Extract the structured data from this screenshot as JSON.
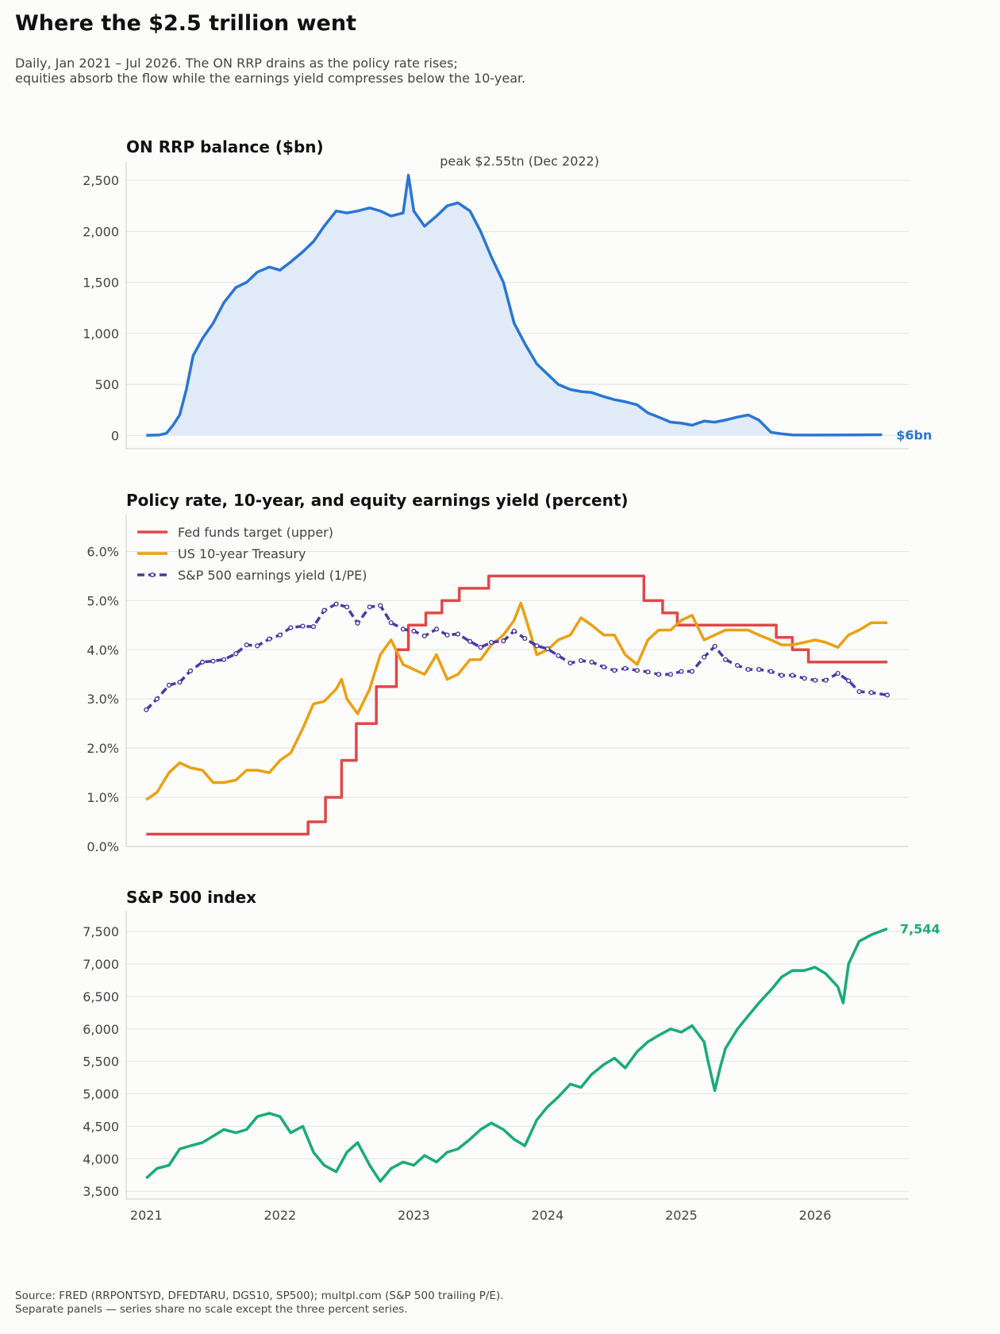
{
  "title": "Where the $2.5 trillion went",
  "subtitle": [
    "Daily, Jan 2021 – Jul 2026. The ON RRP drains as the policy rate rises;",
    "equities absorb the flow while the earnings yield compresses below the 10-year."
  ],
  "footer": [
    "Source: FRED (RRPONTSYD, DFEDTARU, DGS10, SP500); multpl.com (S&P 500 trailing P/E).",
    "Separate panels — series share no scale except the three percent series."
  ],
  "colors": {
    "rrp": "#2a76d2",
    "rrp_fill": "#e1eaf7",
    "fedfunds": "#e04848",
    "treasury": "#eba012",
    "earnings_yield": "#4a3aa4",
    "spx": "#1aab78",
    "grid": "#e3e3e3",
    "axis": "#cccccc"
  },
  "chart_data": [
    {
      "type": "area",
      "title": "ON RRP balance  ($bn)",
      "annotation": "peak $2.55tn (Dec 2022)",
      "end_label": "$6bn",
      "xlim": [
        2020.85,
        2026.7
      ],
      "ylim": [
        -130,
        2680
      ],
      "yticks": [
        0,
        500,
        1000,
        1500,
        2000,
        2500
      ],
      "ytick_labels": [
        "0",
        "500",
        "1,000",
        "1,500",
        "2,000",
        "2,500"
      ],
      "grid": true,
      "series": [
        {
          "x": [
            2021.0,
            2021.1,
            2021.15,
            2021.2,
            2021.25,
            2021.3,
            2021.35,
            2021.42,
            2021.5,
            2021.58,
            2021.67,
            2021.75,
            2021.83,
            2021.92,
            2022.0,
            2022.08,
            2022.17,
            2022.25,
            2022.33,
            2022.42,
            2022.5,
            2022.58,
            2022.67,
            2022.75,
            2022.83,
            2022.92,
            2022.96,
            2023.0,
            2023.08,
            2023.17,
            2023.25,
            2023.33,
            2023.42,
            2023.5,
            2023.58,
            2023.67,
            2023.75,
            2023.83,
            2023.92,
            2024.0,
            2024.08,
            2024.17,
            2024.25,
            2024.33,
            2024.42,
            2024.5,
            2024.58,
            2024.67,
            2024.75,
            2024.83,
            2024.92,
            2025.0,
            2025.08,
            2025.17,
            2025.25,
            2025.33,
            2025.42,
            2025.5,
            2025.58,
            2025.67,
            2025.75,
            2025.83,
            2026.0,
            2026.25,
            2026.5
          ],
          "y": [
            0,
            5,
            20,
            100,
            200,
            450,
            780,
            950,
            1100,
            1300,
            1450,
            1500,
            1600,
            1650,
            1620,
            1700,
            1800,
            1900,
            2050,
            2200,
            2180,
            2200,
            2230,
            2200,
            2150,
            2180,
            2550,
            2200,
            2050,
            2150,
            2250,
            2280,
            2200,
            2000,
            1750,
            1500,
            1100,
            900,
            700,
            600,
            500,
            450,
            430,
            420,
            380,
            350,
            330,
            300,
            220,
            180,
            130,
            120,
            100,
            140,
            130,
            150,
            180,
            200,
            150,
            30,
            15,
            5,
            3,
            5,
            6
          ]
        }
      ]
    },
    {
      "type": "line",
      "title": "Policy rate, 10-year, and equity earnings yield  (percent)",
      "xlim": [
        2020.85,
        2026.7
      ],
      "ylim": [
        0.0,
        6.75
      ],
      "yticks": [
        0,
        1,
        2,
        3,
        4,
        5,
        6
      ],
      "ytick_labels": [
        "0.0%",
        "1.0%",
        "2.0%",
        "3.0%",
        "4.0%",
        "5.0%",
        "6.0%"
      ],
      "legend_position": "top-left",
      "grid": true,
      "series": [
        {
          "name": "Fed funds target (upper)",
          "step": true,
          "x": [
            2021.0,
            2022.21,
            2022.34,
            2022.46,
            2022.57,
            2022.72,
            2022.87,
            2022.96,
            2023.09,
            2023.21,
            2023.34,
            2023.56,
            2024.72,
            2024.86,
            2024.97,
            2025.71,
            2025.83,
            2025.95,
            2026.54
          ],
          "y": [
            0.25,
            0.5,
            1.0,
            1.75,
            2.5,
            3.25,
            4.0,
            4.5,
            4.75,
            5.0,
            5.25,
            5.5,
            5.0,
            4.75,
            4.5,
            4.25,
            4.0,
            3.75,
            3.75
          ]
        },
        {
          "name": "US 10-year Treasury",
          "x": [
            2021.0,
            2021.08,
            2021.17,
            2021.25,
            2021.33,
            2021.42,
            2021.5,
            2021.58,
            2021.67,
            2021.75,
            2021.83,
            2021.92,
            2022.0,
            2022.08,
            2022.17,
            2022.25,
            2022.33,
            2022.42,
            2022.46,
            2022.5,
            2022.58,
            2022.67,
            2022.75,
            2022.83,
            2022.92,
            2023.0,
            2023.08,
            2023.17,
            2023.25,
            2023.33,
            2023.42,
            2023.5,
            2023.58,
            2023.67,
            2023.75,
            2023.8,
            2023.83,
            2023.92,
            2024.0,
            2024.08,
            2024.17,
            2024.25,
            2024.33,
            2024.42,
            2024.5,
            2024.58,
            2024.67,
            2024.75,
            2024.83,
            2024.92,
            2025.0,
            2025.08,
            2025.17,
            2025.25,
            2025.33,
            2025.42,
            2025.5,
            2025.58,
            2025.67,
            2025.75,
            2025.83,
            2025.92,
            2026.0,
            2026.08,
            2026.17,
            2026.25,
            2026.33,
            2026.42,
            2026.54
          ],
          "y": [
            0.95,
            1.1,
            1.5,
            1.7,
            1.6,
            1.55,
            1.3,
            1.3,
            1.35,
            1.55,
            1.55,
            1.5,
            1.75,
            1.9,
            2.4,
            2.9,
            2.95,
            3.2,
            3.4,
            3.0,
            2.7,
            3.2,
            3.9,
            4.2,
            3.7,
            3.6,
            3.5,
            3.9,
            3.4,
            3.5,
            3.8,
            3.8,
            4.1,
            4.3,
            4.6,
            4.95,
            4.7,
            3.9,
            4.0,
            4.2,
            4.3,
            4.65,
            4.5,
            4.3,
            4.3,
            3.9,
            3.7,
            4.2,
            4.4,
            4.4,
            4.6,
            4.7,
            4.2,
            4.3,
            4.4,
            4.4,
            4.4,
            4.3,
            4.2,
            4.1,
            4.1,
            4.15,
            4.2,
            4.15,
            4.05,
            4.3,
            4.4,
            4.55,
            4.55
          ]
        },
        {
          "name": "S&P 500 earnings yield (1/PE)",
          "markers": true,
          "x": [
            2021.0,
            2021.08,
            2021.17,
            2021.25,
            2021.33,
            2021.42,
            2021.5,
            2021.58,
            2021.67,
            2021.75,
            2021.83,
            2021.92,
            2022.0,
            2022.08,
            2022.17,
            2022.25,
            2022.33,
            2022.42,
            2022.5,
            2022.58,
            2022.67,
            2022.75,
            2022.83,
            2022.92,
            2023.0,
            2023.08,
            2023.17,
            2023.25,
            2023.33,
            2023.42,
            2023.5,
            2023.58,
            2023.67,
            2023.75,
            2023.83,
            2023.92,
            2024.0,
            2024.08,
            2024.17,
            2024.25,
            2024.33,
            2024.42,
            2024.5,
            2024.58,
            2024.67,
            2024.75,
            2024.83,
            2024.92,
            2025.0,
            2025.08,
            2025.17,
            2025.25,
            2025.33,
            2025.42,
            2025.5,
            2025.58,
            2025.67,
            2025.75,
            2025.83,
            2025.92,
            2026.0,
            2026.08,
            2026.17,
            2026.25,
            2026.33,
            2026.42,
            2026.54
          ],
          "y": [
            2.78,
            3.0,
            3.28,
            3.34,
            3.57,
            3.75,
            3.77,
            3.8,
            3.92,
            4.1,
            4.08,
            4.22,
            4.3,
            4.45,
            4.48,
            4.47,
            4.8,
            4.93,
            4.87,
            4.54,
            4.87,
            4.9,
            4.55,
            4.42,
            4.38,
            4.28,
            4.42,
            4.3,
            4.32,
            4.17,
            4.05,
            4.15,
            4.18,
            4.38,
            4.23,
            4.08,
            4.02,
            3.88,
            3.73,
            3.78,
            3.75,
            3.65,
            3.58,
            3.62,
            3.58,
            3.55,
            3.5,
            3.5,
            3.56,
            3.56,
            3.85,
            4.07,
            3.8,
            3.68,
            3.6,
            3.6,
            3.56,
            3.48,
            3.48,
            3.42,
            3.38,
            3.38,
            3.52,
            3.37,
            3.15,
            3.13,
            3.08
          ]
        }
      ]
    },
    {
      "type": "line",
      "title": "S&P 500 index",
      "end_label": "7,544",
      "xlim": [
        2020.85,
        2026.7
      ],
      "ylim": [
        3380,
        7820
      ],
      "yticks": [
        3500,
        4000,
        4500,
        5000,
        5500,
        6000,
        6500,
        7000,
        7500
      ],
      "ytick_labels": [
        "3,500",
        "4,000",
        "4,500",
        "5,000",
        "5,500",
        "6,000",
        "6,500",
        "7,000",
        "7,500"
      ],
      "xticks": [
        2021,
        2022,
        2023,
        2024,
        2025,
        2026
      ],
      "xtick_labels": [
        "2021",
        "2022",
        "2023",
        "2024",
        "2025",
        "2026"
      ],
      "grid": true,
      "series": [
        {
          "x": [
            2021.0,
            2021.08,
            2021.17,
            2021.25,
            2021.33,
            2021.42,
            2021.5,
            2021.58,
            2021.67,
            2021.75,
            2021.83,
            2021.92,
            2022.0,
            2022.08,
            2022.17,
            2022.25,
            2022.33,
            2022.42,
            2022.5,
            2022.58,
            2022.67,
            2022.75,
            2022.83,
            2022.92,
            2023.0,
            2023.08,
            2023.17,
            2023.25,
            2023.33,
            2023.42,
            2023.5,
            2023.58,
            2023.67,
            2023.75,
            2023.83,
            2023.92,
            2024.0,
            2024.08,
            2024.17,
            2024.25,
            2024.33,
            2024.42,
            2024.5,
            2024.58,
            2024.67,
            2024.75,
            2024.83,
            2024.92,
            2025.0,
            2025.08,
            2025.17,
            2025.2,
            2025.25,
            2025.29,
            2025.33,
            2025.42,
            2025.5,
            2025.58,
            2025.67,
            2025.75,
            2025.83,
            2025.92,
            2026.0,
            2026.08,
            2026.17,
            2026.21,
            2026.25,
            2026.33,
            2026.42,
            2026.54
          ],
          "y": [
            3700,
            3850,
            3900,
            4150,
            4200,
            4250,
            4350,
            4450,
            4400,
            4450,
            4650,
            4700,
            4650,
            4400,
            4500,
            4100,
            3900,
            3800,
            4100,
            4250,
            3900,
            3650,
            3850,
            3950,
            3900,
            4050,
            3950,
            4100,
            4150,
            4300,
            4450,
            4550,
            4450,
            4300,
            4200,
            4600,
            4800,
            4950,
            5150,
            5100,
            5300,
            5450,
            5550,
            5400,
            5650,
            5800,
            5900,
            6000,
            5950,
            6050,
            5800,
            5500,
            5050,
            5400,
            5700,
            6000,
            6200,
            6400,
            6600,
            6800,
            6900,
            6900,
            6950,
            6850,
            6650,
            6400,
            7000,
            7350,
            7450,
            7544
          ]
        }
      ]
    }
  ]
}
